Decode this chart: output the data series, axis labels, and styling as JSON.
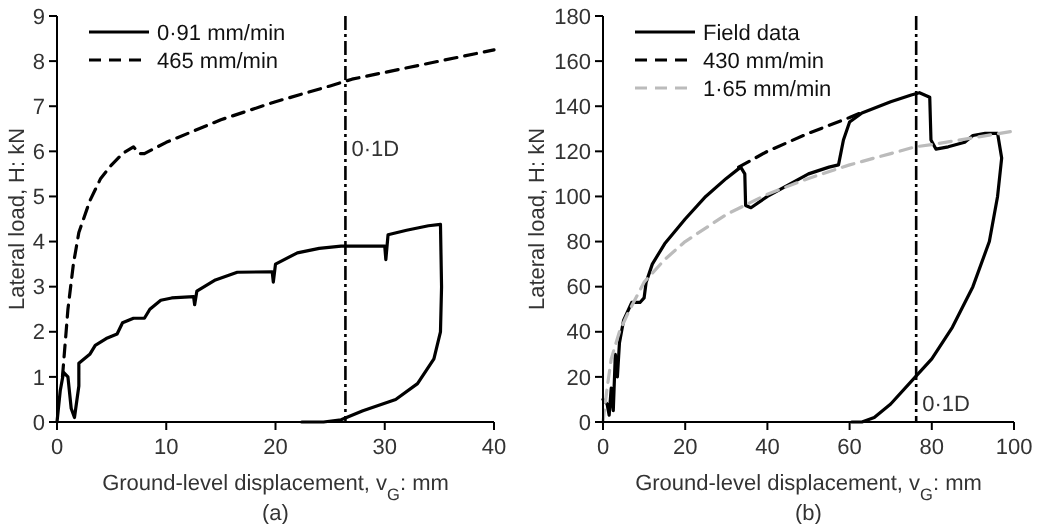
{
  "chart_data": [
    {
      "type": "line",
      "xlabel": "Ground-level displacement, v$_{G}$: mm",
      "ylabel": "Lateral load, H: kN",
      "xlim": [
        0,
        40
      ],
      "xticks": [
        0,
        10,
        20,
        30,
        40
      ],
      "ylim": [
        0,
        9
      ],
      "yticks": [
        0,
        1,
        2,
        3,
        4,
        5,
        6,
        7,
        8,
        9
      ],
      "grid": false,
      "legend": "top left",
      "series": [
        {
          "name": "0·91 mm/min",
          "color": "#000000",
          "line_style": "solid",
          "x": [
            0,
            0.3,
            0.6,
            1.0,
            1.3,
            1.6,
            2.0,
            2.0,
            2.5,
            3,
            3.5,
            4.5,
            5.5,
            6,
            7,
            8,
            8.5,
            9.5,
            10.5,
            12.5,
            12.6,
            12.8,
            14.5,
            16.5,
            19.7,
            19.8,
            20,
            22,
            24,
            26,
            30,
            30.1,
            30.3,
            32,
            34,
            35.1,
            35.2,
            35.1,
            34.5,
            33,
            31,
            28,
            26,
            24.4,
            22.4
          ],
          "values": [
            0,
            0.7,
            1.1,
            1.0,
            0.3,
            0.1,
            0.8,
            1.3,
            1.4,
            1.5,
            1.7,
            1.85,
            1.95,
            2.2,
            2.3,
            2.3,
            2.5,
            2.7,
            2.75,
            2.78,
            2.6,
            2.9,
            3.15,
            3.32,
            3.33,
            3.1,
            3.5,
            3.75,
            3.85,
            3.9,
            3.9,
            3.6,
            4.15,
            4.25,
            4.35,
            4.38,
            3.0,
            2.0,
            1.4,
            0.85,
            0.5,
            0.25,
            0.05,
            0,
            0
          ]
        },
        {
          "name": "465 mm/min",
          "color": "#000000",
          "line_style": "dashed",
          "x": [
            0.5,
            1,
            1.5,
            2,
            3,
            4,
            5,
            6,
            7,
            7.5,
            8,
            10,
            15,
            20,
            25,
            27,
            30,
            35,
            40
          ],
          "values": [
            1.0,
            2.5,
            3.5,
            4.2,
            4.9,
            5.4,
            5.7,
            5.95,
            6.1,
            5.95,
            5.95,
            6.2,
            6.7,
            7.1,
            7.45,
            7.6,
            7.75,
            8.0,
            8.25
          ]
        }
      ],
      "ref_lines": [
        {
          "axis": "x",
          "value": 26.4,
          "color": "#000000"
        }
      ],
      "annotations": [
        {
          "text": "0·1D",
          "x": 26.4,
          "y": 5.9
        },
        "(a)"
      ]
    },
    {
      "type": "line",
      "xlabel": "Ground-level displacement, v$_{G}$: mm",
      "ylabel": "Lateral load, H: kN",
      "xlim": [
        0,
        100
      ],
      "xticks": [
        0,
        20,
        40,
        60,
        80,
        100
      ],
      "ylim": [
        0,
        180
      ],
      "yticks": [
        0,
        20,
        40,
        60,
        80,
        100,
        120,
        140,
        160,
        180
      ],
      "grid": false,
      "legend": "top left",
      "series": [
        {
          "name": "Field data",
          "color": "#000000",
          "line_style": "solid",
          "x": [
            0,
            1,
            1.5,
            2,
            2.5,
            3,
            3.5,
            4,
            5,
            7,
            9,
            10,
            10.5,
            12,
            15,
            20,
            25,
            30,
            33.5,
            34.5,
            34.7,
            36,
            40,
            45,
            50,
            55,
            57.3,
            58.5,
            60,
            63,
            70,
            75,
            77,
            79.5,
            79.8,
            81,
            84,
            88,
            90,
            93,
            96,
            97,
            96,
            94,
            90,
            85,
            80,
            76,
            70,
            66,
            63,
            60.5
          ],
          "values": [
            10,
            8,
            3,
            15,
            5,
            30,
            20,
            35,
            45,
            53,
            53,
            55,
            62,
            70,
            79,
            90,
            100,
            108,
            113,
            110,
            96,
            95,
            100,
            105,
            110,
            113,
            114,
            125,
            133,
            137,
            142,
            145,
            146,
            144,
            125,
            121,
            122,
            124,
            127,
            128,
            128,
            117,
            100,
            80,
            60,
            42,
            28,
            20,
            8,
            2,
            0,
            0
          ]
        },
        {
          "name": "430 mm/min",
          "color": "#000000",
          "line_style": "dashed",
          "x": [
            33,
            40,
            50,
            60,
            64
          ],
          "values": [
            113,
            120,
            128,
            135,
            138
          ]
        },
        {
          "name": "1·65 mm/min",
          "color": "#bbbbbb",
          "line_style": "dashed",
          "x": [
            0,
            1,
            2,
            4,
            6,
            10,
            15,
            20,
            30,
            40,
            50,
            60,
            70,
            76,
            80,
            90,
            100
          ],
          "values": [
            0,
            15,
            28,
            40,
            48,
            62,
            72,
            80,
            92,
            101,
            108,
            114,
            119,
            122,
            123,
            126,
            129
          ]
        }
      ],
      "ref_lines": [
        {
          "axis": "x",
          "value": 76.2,
          "color": "#000000"
        }
      ],
      "annotations": [
        {
          "text": "0·1D",
          "x": 76.2,
          "y": 5
        },
        "(b)"
      ]
    }
  ]
}
